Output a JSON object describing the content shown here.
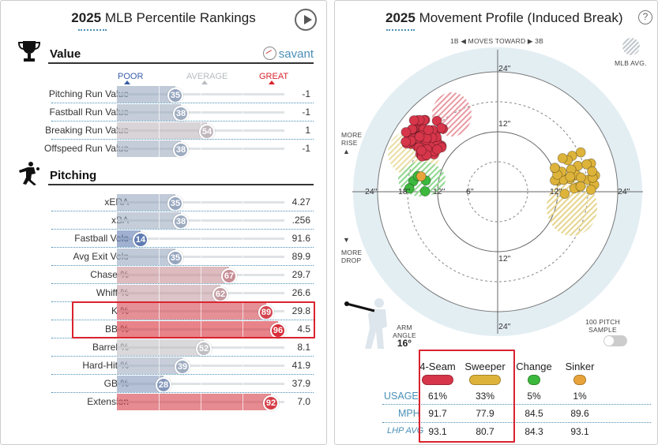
{
  "left": {
    "year": "2025",
    "title": "MLB Percentile Rankings",
    "value_section": "Value",
    "pitching_section": "Pitching",
    "savant_label": "savant",
    "scale": {
      "poor": "POOR",
      "average": "AVERAGE",
      "great": "GREAT"
    },
    "value_rows": [
      {
        "name": "Pitching Run Value",
        "pct": "35",
        "value": "-1"
      },
      {
        "name": "Fastball Run Value",
        "pct": "38",
        "value": "-1"
      },
      {
        "name": "Breaking Run Value",
        "pct": "54",
        "value": "1"
      },
      {
        "name": "Offspeed Run Value",
        "pct": "38",
        "value": "-1"
      }
    ],
    "pitching_rows": [
      {
        "name": "xERA",
        "pct": "35",
        "value": "4.27"
      },
      {
        "name": "xBA",
        "pct": "38",
        "value": ".256"
      },
      {
        "name": "Fastball Velo",
        "pct": "14",
        "value": "91.6"
      },
      {
        "name": "Avg Exit Velo",
        "pct": "35",
        "value": "89.9"
      },
      {
        "name": "Chase %",
        "pct": "67",
        "value": "29.7"
      },
      {
        "name": "Whiff %",
        "pct": "62",
        "value": "26.6"
      },
      {
        "name": "K %",
        "pct": "89",
        "value": "29.8"
      },
      {
        "name": "BB %",
        "pct": "96",
        "value": "4.5"
      },
      {
        "name": "Barrel %",
        "pct": "52",
        "value": "8.1"
      },
      {
        "name": "Hard-Hit %",
        "pct": "39",
        "value": "41.9"
      },
      {
        "name": "GB %",
        "pct": "28",
        "value": "37.9"
      },
      {
        "name": "Extension",
        "pct": "92",
        "value": "7.0"
      }
    ]
  },
  "right": {
    "year": "2025",
    "title": "Movement Profile (Induced Break)",
    "help": "?",
    "moves_toward": {
      "left": "1B",
      "center": "MOVES TOWARD",
      "right": "3B"
    },
    "mlb_avg": "MLB AVG.",
    "more_rise": "MORE RISE",
    "more_drop": "MORE DROP",
    "ring_labels": [
      "24\"",
      "12\"",
      "6\"",
      "12\"",
      "18\"",
      "12\"",
      "24\"",
      "24\"",
      "12\"",
      "24\""
    ],
    "arm_angle_label": "ARM ANGLE",
    "arm_angle_value": "16°",
    "sample_label": "100 PITCH SAMPLE",
    "row_labels": {
      "usage": "USAGE",
      "mph": "MPH",
      "lhp": "LHP AVG"
    },
    "pitches": [
      {
        "name": "4-Seam",
        "color": "#d6354a",
        "usage": "61%",
        "mph": "91.7",
        "lhp_avg": "93.1"
      },
      {
        "name": "Sweeper",
        "color": "#ddb33a",
        "usage": "33%",
        "mph": "77.9",
        "lhp_avg": "80.7"
      },
      {
        "name": "Change",
        "color": "#3cb83c",
        "usage": "5%",
        "mph": "84.5",
        "lhp_avg": "84.3"
      },
      {
        "name": "Sinker",
        "color": "#e8a43a",
        "usage": "1%",
        "mph": "89.6",
        "lhp_avg": "93.1"
      }
    ]
  },
  "colors": {
    "accent": "#4b8fb6",
    "highlight": "#d9232e",
    "poor": "#3a5fa8",
    "great": "#d9232e"
  }
}
